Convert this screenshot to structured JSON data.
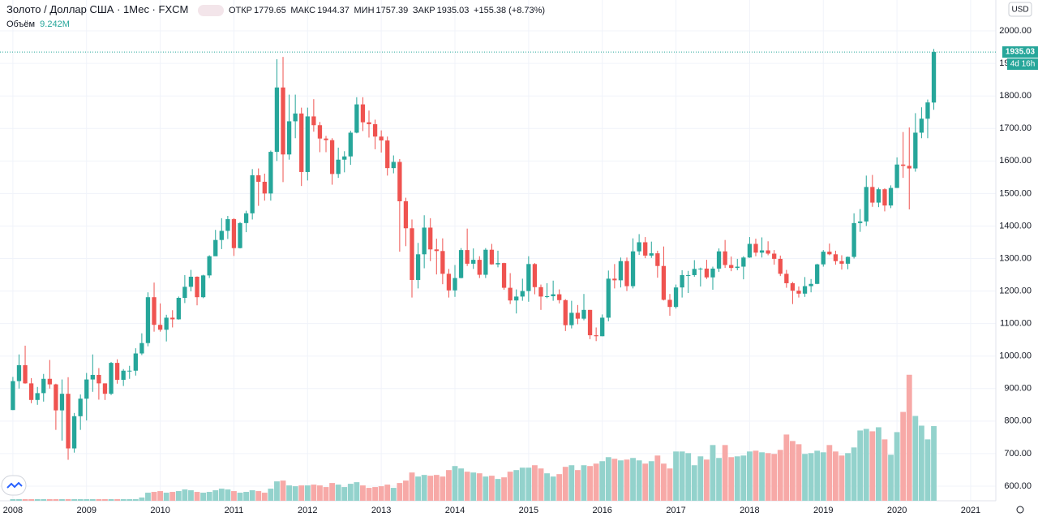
{
  "chart_data": {
    "type": "candlestick",
    "title": "Золото / Доллар США · 1Мес · FXCM",
    "open_label": "ОТКР",
    "high_label": "МАКС",
    "low_label": "МИН",
    "close_label": "ЗАКР",
    "change_label": "+155.38 (+8.73%)",
    "volume_name": "Объём",
    "volume_label": "9.242M",
    "currency": "USD",
    "countdown": "4d 16h",
    "up_color": "#26a69a",
    "down_color": "#ef5350",
    "volume_up_color": "#93d2cc",
    "volume_down_color": "#f7a9a7",
    "xlim": [
      -2.1,
      160.1
    ],
    "xticks": [
      {
        "value": 0,
        "label": "2008"
      },
      {
        "value": 12,
        "label": "2009"
      },
      {
        "value": 24,
        "label": "2010"
      },
      {
        "value": 36,
        "label": "2011"
      },
      {
        "value": 48,
        "label": "2012"
      },
      {
        "value": 60,
        "label": "2013"
      },
      {
        "value": 72,
        "label": "2014"
      },
      {
        "value": 84,
        "label": "2015"
      },
      {
        "value": 96,
        "label": "2016"
      },
      {
        "value": 108,
        "label": "2017"
      },
      {
        "value": 120,
        "label": "2018"
      },
      {
        "value": 132,
        "label": "2019"
      },
      {
        "value": 144,
        "label": "2020"
      },
      {
        "value": 156,
        "label": "2021"
      }
    ],
    "ylim": [
      555,
      2095
    ],
    "yticks": [
      {
        "value": 600,
        "label": "600.00"
      },
      {
        "value": 700,
        "label": "700.00"
      },
      {
        "value": 800,
        "label": "800.00"
      },
      {
        "value": 900,
        "label": "900.00"
      },
      {
        "value": 1000,
        "label": "1000.00"
      },
      {
        "value": 1100,
        "label": "1100.00"
      },
      {
        "value": 1200,
        "label": "1200.00"
      },
      {
        "value": 1300,
        "label": "1300.00"
      },
      {
        "value": 1400,
        "label": "1400.00"
      },
      {
        "value": 1500,
        "label": "1500.00"
      },
      {
        "value": 1600,
        "label": "1600.00"
      },
      {
        "value": 1700,
        "label": "1700.00"
      },
      {
        "value": 1800,
        "label": "1800.00"
      },
      {
        "value": 1900,
        "label": "1900.00"
      },
      {
        "value": 2000,
        "label": "2000.00"
      }
    ],
    "y2lim": [
      0,
      62
    ],
    "open": [
      834,
      923,
      972,
      916,
      865,
      886,
      930,
      913,
      833,
      884,
      716,
      815,
      869,
      928,
      942,
      916,
      884,
      979,
      927,
      955,
      955,
      1008,
      1040,
      1181,
      1096,
      1081,
      1118,
      1113,
      1179,
      1213,
      1244,
      1181,
      1248,
      1307,
      1357,
      1385,
      1421,
      1332,
      1409,
      1439,
      1556,
      1536,
      1500,
      1628,
      1826,
      1620,
      1722,
      1746,
      1566,
      1737,
      1710,
      1669,
      1664,
      1560,
      1604,
      1614,
      1687,
      1774,
      1719,
      1713,
      1675,
      1663,
      1578,
      1597,
      1476,
      1393,
      1234,
      1313,
      1395,
      1328,
      1323,
      1253,
      1202,
      1240,
      1326,
      1284,
      1296,
      1250,
      1327,
      1282,
      1286,
      1210,
      1171,
      1183,
      1200,
      1283,
      1212,
      1183,
      1184,
      1190,
      1172,
      1095,
      1133,
      1115,
      1142,
      1064,
      1061,
      1118,
      1238,
      1233,
      1292,
      1215,
      1322,
      1350,
      1309,
      1316,
      1277,
      1173,
      1151,
      1211,
      1249,
      1249,
      1268,
      1269,
      1242,
      1269,
      1322,
      1280,
      1271,
      1275,
      1303,
      1345,
      1318,
      1325,
      1315,
      1299,
      1253,
      1224,
      1201,
      1192,
      1215,
      1222,
      1282,
      1321,
      1313,
      1292,
      1284,
      1305,
      1409,
      1414,
      1520,
      1472,
      1513,
      1463,
      1517,
      1589,
      1585,
      1577,
      1687,
      1730,
      1779.65
    ],
    "high": [
      936,
      1005,
      1032,
      932,
      905,
      945,
      988,
      915,
      928,
      935,
      825,
      882,
      948,
      1005,
      963,
      916,
      982,
      990,
      960,
      970,
      1024,
      1070,
      1196,
      1226,
      1162,
      1127,
      1141,
      1183,
      1249,
      1265,
      1245,
      1250,
      1310,
      1388,
      1424,
      1431,
      1424,
      1412,
      1447,
      1575,
      1577,
      1561,
      1632,
      1913,
      1920,
      1804,
      1804,
      1764,
      1764,
      1790,
      1720,
      1677,
      1670,
      1641,
      1630,
      1693,
      1796,
      1796,
      1755,
      1727,
      1694,
      1675,
      1617,
      1606,
      1487,
      1420,
      1348,
      1433,
      1424,
      1361,
      1362,
      1268,
      1280,
      1332,
      1392,
      1331,
      1307,
      1332,
      1345,
      1324,
      1287,
      1255,
      1205,
      1238,
      1307,
      1286,
      1220,
      1224,
      1232,
      1205,
      1175,
      1170,
      1157,
      1191,
      1142,
      1088,
      1128,
      1263,
      1283,
      1303,
      1303,
      1362,
      1375,
      1366,
      1352,
      1324,
      1337,
      1191,
      1220,
      1264,
      1262,
      1295,
      1272,
      1296,
      1275,
      1331,
      1357,
      1306,
      1299,
      1307,
      1366,
      1361,
      1365,
      1353,
      1326,
      1309,
      1265,
      1228,
      1214,
      1243,
      1237,
      1284,
      1326,
      1346,
      1324,
      1310,
      1306,
      1439,
      1452,
      1555,
      1557,
      1518,
      1516,
      1525,
      1611,
      1689,
      1703,
      1747,
      1765,
      1789,
      1944.37
    ],
    "low": [
      834,
      900,
      915,
      855,
      850,
      860,
      900,
      773,
      740,
      681,
      703,
      773,
      802,
      890,
      866,
      865,
      880,
      915,
      908,
      930,
      940,
      1003,
      1030,
      1075,
      1075,
      1045,
      1088,
      1112,
      1163,
      1199,
      1156,
      1178,
      1240,
      1315,
      1329,
      1360,
      1308,
      1331,
      1381,
      1420,
      1462,
      1478,
      1478,
      1600,
      1535,
      1604,
      1670,
      1523,
      1540,
      1690,
      1627,
      1627,
      1527,
      1548,
      1565,
      1588,
      1685,
      1692,
      1672,
      1636,
      1626,
      1555,
      1562,
      1321,
      1338,
      1180,
      1208,
      1270,
      1292,
      1251,
      1221,
      1180,
      1182,
      1239,
      1277,
      1268,
      1240,
      1240,
      1281,
      1273,
      1204,
      1160,
      1131,
      1170,
      1167,
      1190,
      1142,
      1178,
      1170,
      1162,
      1077,
      1085,
      1098,
      1110,
      1052,
      1046,
      1061,
      1107,
      1208,
      1211,
      1200,
      1208,
      1311,
      1301,
      1302,
      1241,
      1171,
      1124,
      1146,
      1180,
      1194,
      1244,
      1214,
      1237,
      1204,
      1259,
      1271,
      1261,
      1264,
      1236,
      1302,
      1307,
      1303,
      1310,
      1281,
      1246,
      1210,
      1160,
      1180,
      1182,
      1196,
      1221,
      1275,
      1310,
      1281,
      1266,
      1267,
      1300,
      1382,
      1400,
      1459,
      1458,
      1445,
      1455,
      1517,
      1548,
      1451,
      1567,
      1670,
      1670,
      1757.39
    ],
    "close": [
      923,
      972,
      916,
      865,
      886,
      930,
      913,
      833,
      884,
      716,
      815,
      869,
      928,
      942,
      916,
      884,
      979,
      927,
      955,
      955,
      1008,
      1040,
      1181,
      1096,
      1081,
      1118,
      1113,
      1179,
      1213,
      1244,
      1181,
      1248,
      1307,
      1357,
      1385,
      1421,
      1332,
      1409,
      1439,
      1556,
      1536,
      1500,
      1628,
      1826,
      1620,
      1722,
      1746,
      1566,
      1737,
      1710,
      1669,
      1664,
      1560,
      1604,
      1614,
      1687,
      1774,
      1719,
      1713,
      1675,
      1663,
      1578,
      1597,
      1476,
      1393,
      1234,
      1313,
      1395,
      1328,
      1323,
      1253,
      1202,
      1240,
      1326,
      1284,
      1296,
      1250,
      1327,
      1282,
      1286,
      1210,
      1171,
      1183,
      1200,
      1283,
      1212,
      1183,
      1184,
      1190,
      1172,
      1095,
      1133,
      1115,
      1142,
      1064,
      1061,
      1118,
      1238,
      1233,
      1292,
      1215,
      1322,
      1350,
      1309,
      1316,
      1277,
      1173,
      1151,
      1211,
      1249,
      1249,
      1268,
      1269,
      1242,
      1269,
      1322,
      1280,
      1271,
      1275,
      1303,
      1345,
      1318,
      1325,
      1315,
      1299,
      1253,
      1224,
      1201,
      1192,
      1215,
      1222,
      1282,
      1321,
      1313,
      1292,
      1284,
      1305,
      1409,
      1414,
      1520,
      1472,
      1513,
      1463,
      1517,
      1589,
      1585,
      1577,
      1687,
      1730,
      1780,
      1935.03
    ],
    "volume": [
      0.2,
      0.2,
      0.2,
      0.2,
      0.2,
      0.2,
      0.2,
      0.2,
      0.2,
      0.2,
      0.2,
      0.2,
      0.2,
      0.2,
      0.2,
      0.2,
      0.2,
      0.2,
      0.2,
      0.2,
      0.2,
      0.4,
      1.0,
      1.1,
      1.2,
      1.0,
      1.1,
      1.2,
      1.4,
      1.3,
      1.1,
      1.0,
      1.1,
      1.3,
      1.5,
      1.4,
      1.2,
      1.0,
      1.1,
      1.3,
      1.2,
      1.0,
      1.5,
      2.4,
      2.5,
      1.9,
      1.8,
      1.9,
      1.9,
      2.0,
      1.9,
      1.7,
      2.2,
      2.0,
      1.7,
      2.1,
      2.3,
      1.9,
      1.6,
      1.7,
      1.8,
      2.0,
      1.6,
      2.2,
      2.5,
      3.5,
      3.0,
      3.2,
      3.1,
      3.2,
      3.0,
      3.8,
      4.3,
      4.0,
      3.6,
      3.5,
      3.4,
      3.0,
      3.1,
      2.7,
      2.9,
      3.6,
      3.8,
      4.1,
      4.1,
      4.4,
      4.0,
      3.4,
      3.0,
      3.3,
      4.2,
      4.4,
      3.8,
      4.4,
      4.3,
      4.6,
      4.9,
      5.4,
      5.2,
      5.0,
      5.1,
      5.3,
      5.0,
      4.6,
      4.9,
      5.6,
      4.6,
      4.0,
      6.1,
      6.1,
      5.9,
      4.4,
      5.5,
      5.1,
      6.9,
      5.3,
      6.9,
      5.4,
      5.5,
      5.6,
      6.1,
      6.2,
      6.0,
      5.9,
      5.8,
      6.3,
      8.2,
      7.4,
      7.0,
      5.8,
      5.9,
      6.2,
      6.0,
      6.9,
      6.1,
      5.6,
      5.9,
      6.6,
      8.7,
      8.9,
      8.6,
      9.1,
      7.6,
      5.7,
      8.5,
      11.0,
      15.6,
      10.5,
      9.3,
      7.6,
      9.242
    ]
  }
}
